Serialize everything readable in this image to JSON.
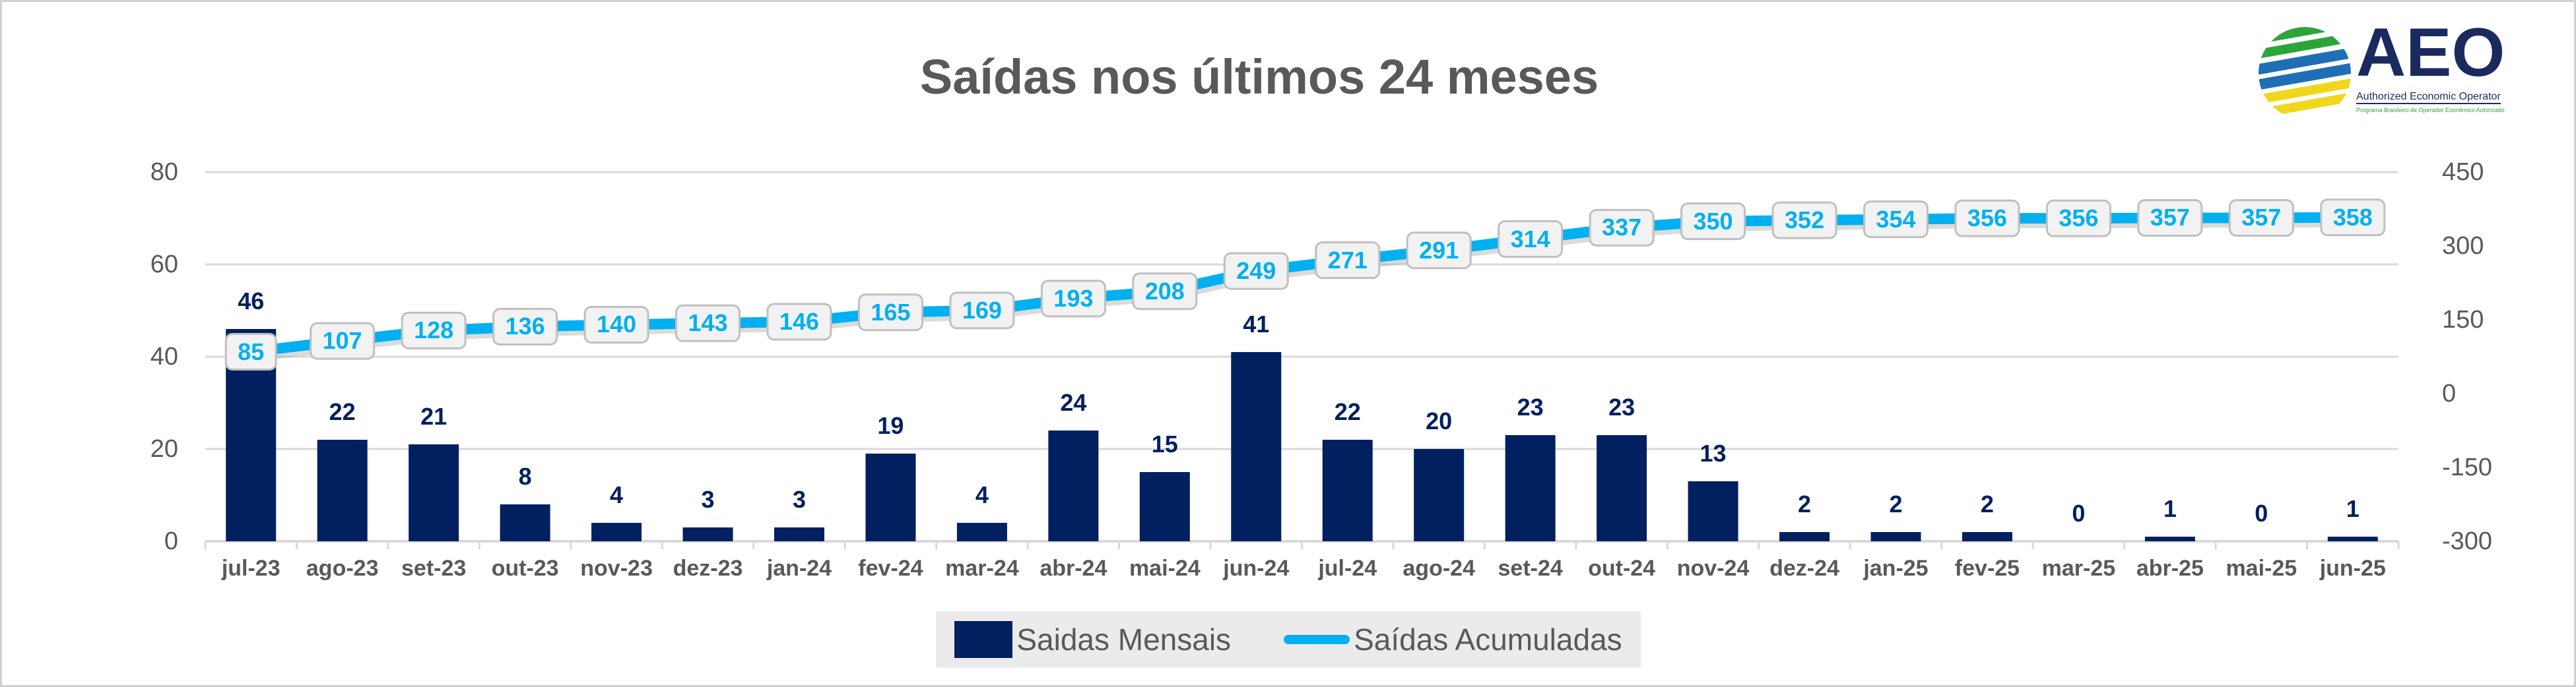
{
  "logo": {
    "text": "AEO",
    "subtitle": "Authorized Economic Operator",
    "tagline": "Programa Brasileiro de Operador Econômico Autorizado"
  },
  "chart_data": {
    "type": "bar+line",
    "title": "Saídas nos últimos 24 meses",
    "categories": [
      "jul-23",
      "ago-23",
      "set-23",
      "out-23",
      "nov-23",
      "dez-23",
      "jan-24",
      "fev-24",
      "mar-24",
      "abr-24",
      "mai-24",
      "jun-24",
      "jul-24",
      "ago-24",
      "set-24",
      "out-24",
      "nov-24",
      "dez-24",
      "jan-25",
      "fev-25",
      "mar-25",
      "abr-25",
      "mai-25",
      "jun-25"
    ],
    "series": [
      {
        "name": "Saidas Mensais",
        "type": "bar",
        "axis": "left",
        "color": "#002060",
        "values": [
          46,
          22,
          21,
          8,
          4,
          3,
          3,
          19,
          4,
          24,
          15,
          41,
          22,
          20,
          23,
          23,
          13,
          2,
          2,
          2,
          0,
          1,
          0,
          1
        ]
      },
      {
        "name": "Saídas Acumuladas",
        "type": "line",
        "axis": "right",
        "color": "#00b0f0",
        "values": [
          85,
          107,
          128,
          136,
          140,
          143,
          146,
          165,
          169,
          193,
          208,
          249,
          271,
          291,
          314,
          337,
          350,
          352,
          354,
          356,
          356,
          357,
          357,
          358
        ]
      }
    ],
    "y_left": {
      "range": [
        0,
        80
      ],
      "ticks": [
        "0",
        "20",
        "40",
        "60",
        "80"
      ]
    },
    "y_right": {
      "range": [
        -300,
        450
      ],
      "ticks": [
        "-300",
        "-150",
        "0",
        "150",
        "300",
        "450"
      ]
    },
    "grid": true,
    "legend": "bottom"
  }
}
